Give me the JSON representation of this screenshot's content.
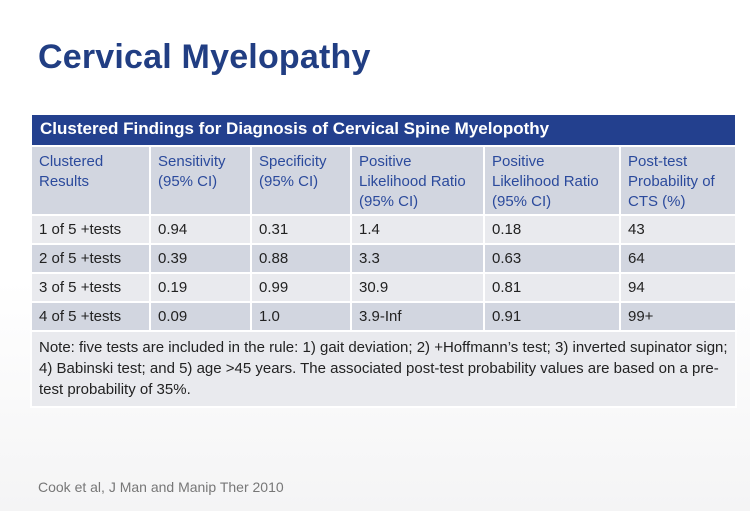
{
  "slide": {
    "title": "Cervical Myelopathy",
    "citation": "Cook et al, J Man and Manip Ther 2010"
  },
  "table": {
    "caption": "Clustered Findings for Diagnosis of Cervical Spine Myelopothy",
    "headers": [
      "Clustered Results",
      "Sensitivity (95% CI)",
      "Specificity (95% CI)",
      "Positive Likelihood Ratio (95% CI)",
      "Positive Likelihood Ratio (95% CI)",
      "Post-test Probability of CTS (%)"
    ],
    "rows": [
      [
        "1 of 5 +tests",
        "0.94",
        "0.31",
        "1.4",
        "0.18",
        "43"
      ],
      [
        "2 of 5 +tests",
        "0.39",
        "0.88",
        "3.3",
        "0.63",
        "64"
      ],
      [
        "3 of 5 +tests",
        "0.19",
        "0.99",
        "30.9",
        "0.81",
        "94"
      ],
      [
        "4 of 5 +tests",
        "0.09",
        "1.0",
        "3.9-Inf",
        "0.91",
        "99+"
      ]
    ],
    "note": "Note: five tests are included in the rule: 1) gait deviation; 2) +Hoffmann’s test; 3) inverted supinator sign; 4) Babinski test; and 5) age >45 years. The associated post-test probability values are based on a pre-test probability of 35%."
  }
}
